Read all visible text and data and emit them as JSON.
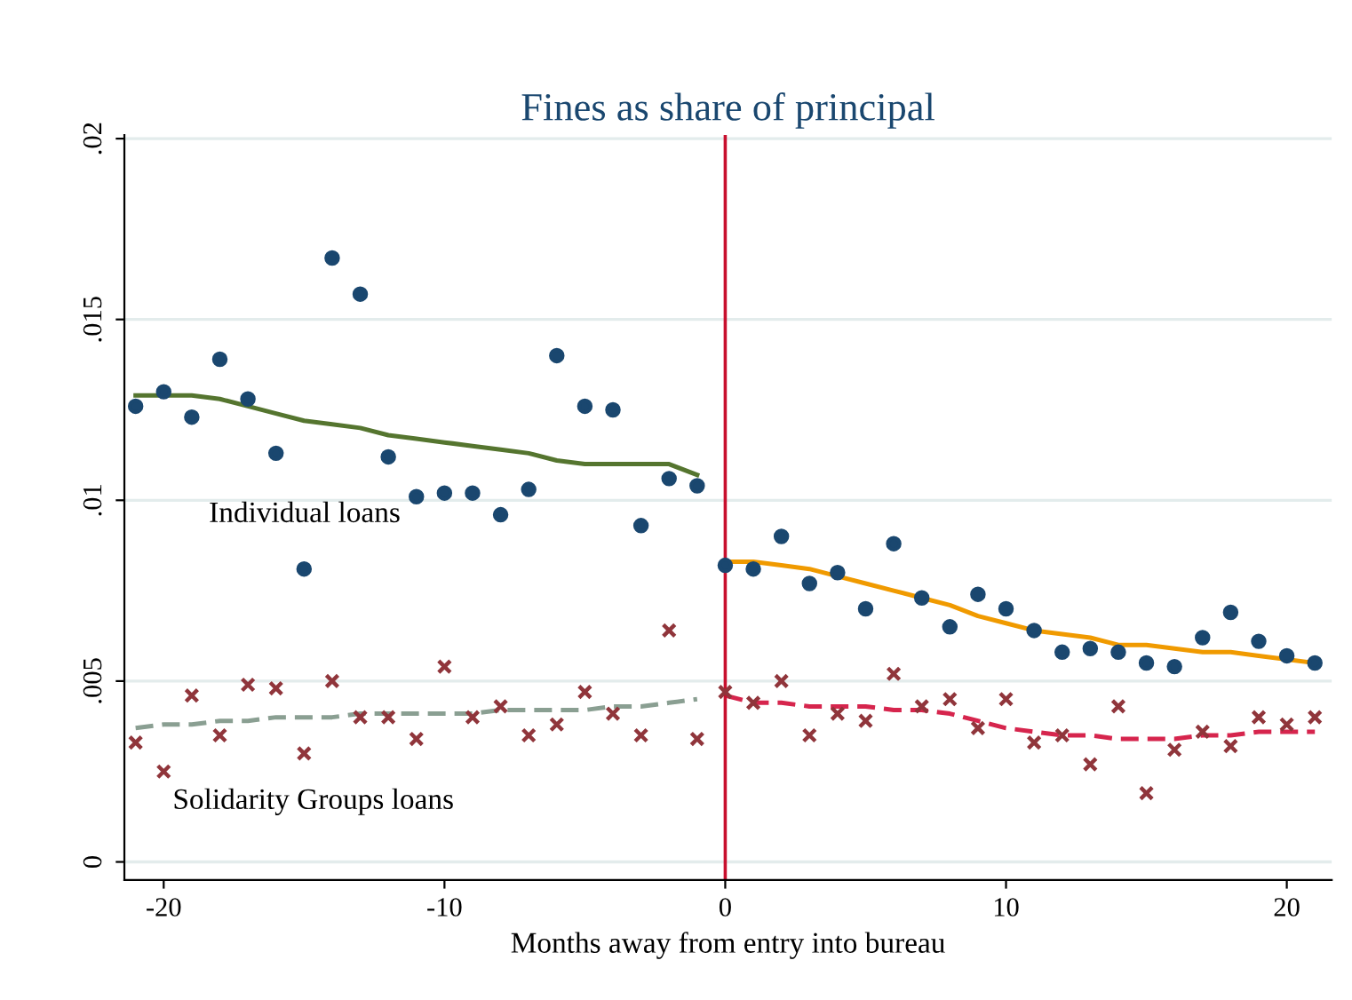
{
  "chart_data": {
    "type": "scatter",
    "title": "Fines as share of principal",
    "xlabel": "Months away from entry into bureau",
    "xlim": [
      -21.4,
      21.6
    ],
    "xticks": [
      -20,
      -10,
      0,
      10,
      20
    ],
    "ylim": [
      -0.0005,
      0.0201
    ],
    "yticks": [
      {
        "value": 0,
        "label": "0"
      },
      {
        "value": 0.005,
        "label": ".005"
      },
      {
        "value": 0.01,
        "label": ".01"
      },
      {
        "value": 0.015,
        "label": ".015"
      },
      {
        "value": 0.02,
        "label": ".02"
      }
    ],
    "grid": "y",
    "legend": false,
    "ref_lines": [
      {
        "axis": "x",
        "value": 0,
        "color": "#c8102e",
        "line_style": "solid"
      }
    ],
    "annotations": [
      "Individual loans",
      "Solidarity Groups loans"
    ],
    "series": [
      {
        "marker": "circle",
        "color": "#1a476f",
        "x": [
          -21,
          -20,
          -19,
          -18,
          -17,
          -16,
          -15,
          -14,
          -13,
          -12,
          -11,
          -10,
          -9,
          -8,
          -7,
          -6,
          -5,
          -4,
          -3,
          -2,
          -1,
          0,
          1,
          2,
          3,
          4,
          5,
          6,
          7,
          8,
          9,
          10,
          11,
          12,
          13,
          14,
          15,
          16,
          17,
          18,
          19,
          20,
          21
        ],
        "values": [
          0.0126,
          0.013,
          0.0123,
          0.0139,
          0.0128,
          0.0113,
          0.0081,
          0.0167,
          0.0157,
          0.0112,
          0.0101,
          0.0102,
          0.0102,
          0.0096,
          0.0103,
          0.014,
          0.0126,
          0.0125,
          0.0093,
          0.0106,
          0.0104,
          0.0082,
          0.0081,
          0.009,
          0.0077,
          0.008,
          0.007,
          0.0088,
          0.0073,
          0.0065,
          0.0074,
          0.007,
          0.0064,
          0.0058,
          0.0059,
          0.0058,
          0.0055,
          0.0054,
          0.0062,
          0.0069,
          0.0061,
          0.0057,
          0.0055
        ]
      },
      {
        "marker": "cross",
        "color": "#90353b",
        "x": [
          -21,
          -20,
          -19,
          -18,
          -17,
          -16,
          -15,
          -14,
          -13,
          -12,
          -11,
          -10,
          -9,
          -8,
          -7,
          -6,
          -5,
          -4,
          -3,
          -2,
          -1,
          0,
          1,
          2,
          3,
          4,
          5,
          6,
          7,
          8,
          9,
          10,
          11,
          12,
          13,
          14,
          15,
          16,
          17,
          18,
          19,
          20,
          21
        ],
        "values": [
          0.0033,
          0.0025,
          0.0046,
          0.0035,
          0.0049,
          0.0048,
          0.003,
          0.005,
          0.004,
          0.004,
          0.0034,
          0.0054,
          0.004,
          0.0043,
          0.0035,
          0.0038,
          0.0047,
          0.0041,
          0.0035,
          0.0064,
          0.0034,
          0.0047,
          0.0044,
          0.005,
          0.0035,
          0.0041,
          0.0039,
          0.0052,
          0.0043,
          0.0045,
          0.0037,
          0.0045,
          0.0033,
          0.0035,
          0.0027,
          0.0043,
          0.0019,
          0.0031,
          0.0036,
          0.0032,
          0.004,
          0.0038,
          0.004
        ]
      },
      {
        "type": "line",
        "line_style": "solid",
        "color": "#55752f",
        "x": [
          -21,
          -20,
          -19,
          -18,
          -17,
          -16,
          -15,
          -14,
          -13,
          -12,
          -11,
          -10,
          -9,
          -8,
          -7,
          -6,
          -5,
          -4,
          -3,
          -2,
          -1
        ],
        "values": [
          0.0129,
          0.0129,
          0.0129,
          0.0128,
          0.0126,
          0.0124,
          0.0122,
          0.0121,
          0.012,
          0.0118,
          0.0117,
          0.0116,
          0.0115,
          0.0114,
          0.0113,
          0.0111,
          0.011,
          0.011,
          0.011,
          0.011,
          0.0107
        ]
      },
      {
        "type": "line",
        "line_style": "solid",
        "color": "#f09a00",
        "x": [
          0,
          1,
          2,
          3,
          4,
          5,
          6,
          7,
          8,
          9,
          10,
          11,
          12,
          13,
          14,
          15,
          16,
          17,
          18,
          19,
          20,
          21
        ],
        "values": [
          0.0083,
          0.0083,
          0.0082,
          0.0081,
          0.0079,
          0.0077,
          0.0075,
          0.0073,
          0.0071,
          0.0068,
          0.0066,
          0.0064,
          0.0063,
          0.0062,
          0.006,
          0.006,
          0.0059,
          0.0058,
          0.0058,
          0.0057,
          0.0056,
          0.0055
        ]
      },
      {
        "type": "line",
        "line_style": "dashed",
        "color": "#8a9f92",
        "x": [
          -21,
          -20,
          -19,
          -18,
          -17,
          -16,
          -15,
          -14,
          -13,
          -12,
          -11,
          -10,
          -9,
          -8,
          -7,
          -6,
          -5,
          -4,
          -3,
          -2,
          -1
        ],
        "values": [
          0.0037,
          0.0038,
          0.0038,
          0.0039,
          0.0039,
          0.004,
          0.004,
          0.004,
          0.0041,
          0.0041,
          0.0041,
          0.0041,
          0.0041,
          0.0042,
          0.0042,
          0.0042,
          0.0042,
          0.0043,
          0.0043,
          0.0044,
          0.0045
        ]
      },
      {
        "type": "line",
        "line_style": "dashed",
        "color": "#d6254d",
        "x": [
          0,
          1,
          2,
          3,
          4,
          5,
          6,
          7,
          8,
          9,
          10,
          11,
          12,
          13,
          14,
          15,
          16,
          17,
          18,
          19,
          20,
          21
        ],
        "values": [
          0.0046,
          0.0044,
          0.0044,
          0.0043,
          0.0043,
          0.0043,
          0.0042,
          0.0042,
          0.0041,
          0.0039,
          0.0037,
          0.0036,
          0.0035,
          0.0035,
          0.0034,
          0.0034,
          0.0034,
          0.0035,
          0.0035,
          0.0036,
          0.0036,
          0.0036
        ]
      }
    ]
  }
}
